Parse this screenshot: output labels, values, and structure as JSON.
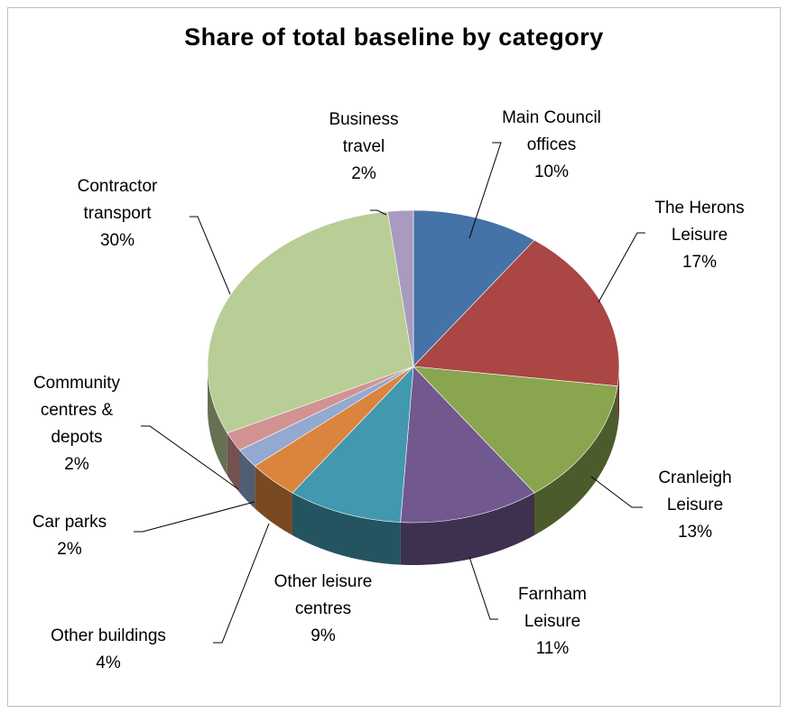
{
  "chart_data": {
    "type": "pie",
    "title": "Share of total baseline by category",
    "legend": "none",
    "grid": false,
    "slices": [
      {
        "label": [
          "Main Council",
          "offices"
        ],
        "value": 10,
        "display": "10%",
        "color": "#4572a7"
      },
      {
        "label": [
          "The Herons",
          "Leisure"
        ],
        "value": 17,
        "display": "17%",
        "color": "#aa4643"
      },
      {
        "label": [
          "Cranleigh",
          "Leisure"
        ],
        "value": 13,
        "display": "13%",
        "color": "#89a54e"
      },
      {
        "label": [
          "Farnham",
          "Leisure"
        ],
        "value": 11,
        "display": "11%",
        "color": "#71588f"
      },
      {
        "label": [
          "Other leisure",
          "centres"
        ],
        "value": 9,
        "display": "9%",
        "color": "#4198af"
      },
      {
        "label": [
          "Other buildings"
        ],
        "value": 4,
        "display": "4%",
        "color": "#db843d"
      },
      {
        "label": [
          "Car parks"
        ],
        "value": 2,
        "display": "2%",
        "color": "#93a9cf"
      },
      {
        "label": [
          "Community",
          "centres &",
          "depots"
        ],
        "value": 2,
        "display": "2%",
        "color": "#d19392"
      },
      {
        "label": [
          "Contractor",
          "transport"
        ],
        "value": 30,
        "display": "30%",
        "color": "#b9cd96"
      },
      {
        "label": [
          "Business",
          "travel"
        ],
        "value": 2,
        "display": "2%",
        "color": "#a99bbd"
      }
    ]
  }
}
